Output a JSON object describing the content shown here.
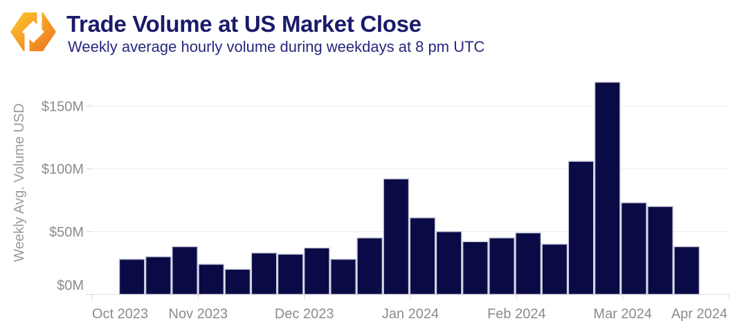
{
  "header": {
    "title": "Trade Volume at US Market Close",
    "subtitle": "Weekly average hourly volume during weekdays at 8 pm UTC",
    "logo": "orange-hex-ring-logo"
  },
  "chart_data": {
    "type": "bar",
    "title": "Trade Volume at US Market Close",
    "subtitle": "Weekly average hourly volume during weekdays at 8 pm UTC",
    "ylabel": "Weekly Avg. Volume USD",
    "xlabel": "",
    "unit": "USD millions",
    "values": [
      28,
      30,
      38,
      24,
      20,
      33,
      32,
      37,
      28,
      45,
      92,
      61,
      50,
      42,
      45,
      49,
      40,
      106,
      169,
      73,
      70,
      38
    ],
    "bar_granularity": "weekly",
    "x_tick_labels": [
      "Oct 2023",
      "Nov 2023",
      "Dec 2023",
      "Jan 2024",
      "Feb 2024",
      "Mar 2024",
      "Apr 2024"
    ],
    "y_tick_labels": [
      "$0M",
      "$50M",
      "$100M",
      "$150M"
    ],
    "y_tick_values": [
      0,
      50,
      100,
      150
    ],
    "ylim": [
      0,
      175
    ],
    "grid": "horizontal",
    "legend": "none",
    "colors": {
      "bar": "#0a0a46",
      "bar_border": "#c9c9dc",
      "grid": "#ececec",
      "baseline": "#e2e2e8",
      "tick": "#d4d4d4",
      "axis_text": "#8b8b8b",
      "axis_title_text": "#9a9a9a",
      "title": "#1a1a6b",
      "subtitle": "#28287f",
      "logo_gradient": [
        "#fdc62f",
        "#f59d26",
        "#ec7222"
      ]
    }
  }
}
